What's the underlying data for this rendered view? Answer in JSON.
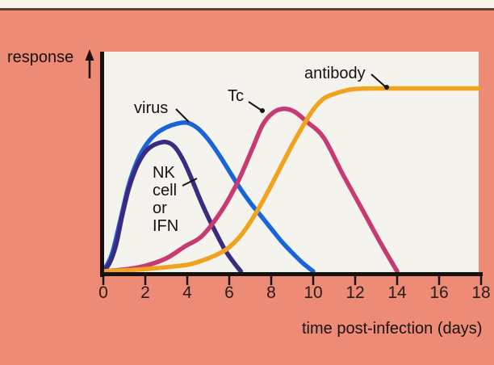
{
  "page": {
    "background_color": "#ee8b77",
    "top_strip_color": "#f7f4ee",
    "top_rule_color": "#5d403a",
    "plot_background_color": "#f5f3ee",
    "axis_color": "#17120f"
  },
  "labels": {
    "nk_lines": [
      "NK",
      "cell",
      "or",
      "IFN"
    ]
  },
  "chart_data": {
    "type": "line",
    "title": "",
    "xlabel": "time post-infection (days)",
    "ylabel": "response",
    "x_axis": {
      "min": 0,
      "max": 18,
      "ticks": [
        0,
        2,
        4,
        6,
        8,
        10,
        12,
        14,
        16,
        18
      ]
    },
    "y_axis": {
      "label": "response",
      "ticks": [],
      "arrow": true,
      "range": [
        0,
        1
      ]
    },
    "grid": false,
    "legend": "inline-annotations",
    "series": [
      {
        "key": "virus",
        "name": "virus",
        "color": "#1a64d9",
        "points": [
          [
            0,
            0
          ],
          [
            0.4,
            0.09
          ],
          [
            0.8,
            0.27
          ],
          [
            1.2,
            0.46
          ],
          [
            1.6,
            0.59
          ],
          [
            2,
            0.675
          ],
          [
            2.5,
            0.74
          ],
          [
            3,
            0.775
          ],
          [
            3.5,
            0.795
          ],
          [
            4,
            0.8
          ],
          [
            4.5,
            0.77
          ],
          [
            5,
            0.71
          ],
          [
            5.5,
            0.63
          ],
          [
            6,
            0.54
          ],
          [
            6.5,
            0.45
          ],
          [
            7,
            0.37
          ],
          [
            7.5,
            0.3
          ],
          [
            8,
            0.23
          ],
          [
            8.5,
            0.16
          ],
          [
            9,
            0.1
          ],
          [
            9.5,
            0.045
          ],
          [
            10,
            0
          ]
        ]
      },
      {
        "key": "nk-ifn",
        "name": "NK cell or IFN",
        "color": "#392b80",
        "points": [
          [
            0,
            0
          ],
          [
            0.3,
            0.045
          ],
          [
            0.6,
            0.14
          ],
          [
            0.9,
            0.3
          ],
          [
            1.2,
            0.44
          ],
          [
            1.5,
            0.54
          ],
          [
            1.8,
            0.61
          ],
          [
            2.1,
            0.655
          ],
          [
            2.5,
            0.685
          ],
          [
            3,
            0.696
          ],
          [
            3.4,
            0.67
          ],
          [
            3.8,
            0.6
          ],
          [
            4.2,
            0.5
          ],
          [
            4.6,
            0.39
          ],
          [
            5,
            0.29
          ],
          [
            5.4,
            0.2
          ],
          [
            5.8,
            0.115
          ],
          [
            6.2,
            0.05
          ],
          [
            6.55,
            0
          ]
        ]
      },
      {
        "key": "tc",
        "name": "Tc",
        "color": "#c73a72",
        "points": [
          [
            0,
            0
          ],
          [
            1,
            0.01
          ],
          [
            2,
            0.03
          ],
          [
            3,
            0.07
          ],
          [
            3.9,
            0.135
          ],
          [
            4.7,
            0.19
          ],
          [
            5.6,
            0.32
          ],
          [
            6.4,
            0.48
          ],
          [
            7.1,
            0.66
          ],
          [
            7.6,
            0.79
          ],
          [
            8.1,
            0.855
          ],
          [
            8.6,
            0.875
          ],
          [
            9.1,
            0.86
          ],
          [
            9.7,
            0.805
          ],
          [
            10.5,
            0.72
          ],
          [
            11.4,
            0.525
          ],
          [
            12.4,
            0.32
          ],
          [
            13.2,
            0.155
          ],
          [
            14,
            0
          ]
        ]
      },
      {
        "key": "antibody",
        "name": "antibody",
        "color": "#f0a41e",
        "points": [
          [
            0,
            0
          ],
          [
            1,
            0.005
          ],
          [
            2,
            0.012
          ],
          [
            3,
            0.022
          ],
          [
            4,
            0.035
          ],
          [
            4.5,
            0.05
          ],
          [
            5,
            0.07
          ],
          [
            5.5,
            0.095
          ],
          [
            6,
            0.13
          ],
          [
            6.6,
            0.2
          ],
          [
            7.2,
            0.3
          ],
          [
            7.8,
            0.42
          ],
          [
            8.4,
            0.55
          ],
          [
            9,
            0.68
          ],
          [
            9.5,
            0.78
          ],
          [
            10,
            0.87
          ],
          [
            10.5,
            0.93
          ],
          [
            11,
            0.955
          ],
          [
            11.5,
            0.972
          ],
          [
            12,
            0.982
          ],
          [
            13,
            0.985
          ],
          [
            15,
            0.985
          ],
          [
            17.9,
            0.985
          ]
        ]
      }
    ],
    "annotations": [
      {
        "text": "virus",
        "series": "virus"
      },
      {
        "text": "Tc",
        "series": "tc"
      },
      {
        "text": "antibody",
        "series": "antibody"
      },
      {
        "text": "NK cell or IFN",
        "series": "nk-ifn"
      }
    ]
  }
}
